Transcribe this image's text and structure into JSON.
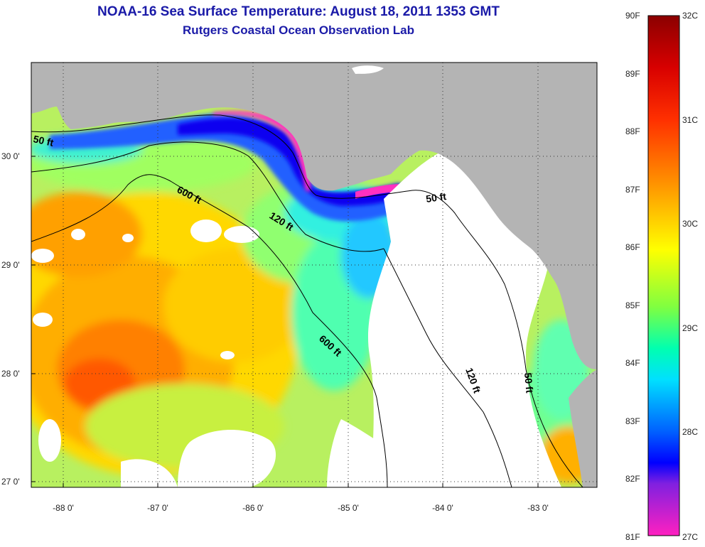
{
  "header": {
    "title": "NOAA-16 Sea Surface Temperature:  August 18, 2011 1353 GMT",
    "subtitle": "Rutgers Coastal Ocean Observation Lab"
  },
  "map": {
    "lon_ticks": [
      "-88 0'",
      "-87 0'",
      "-86 0'",
      "-85 0'",
      "-84 0'",
      "-83 0'"
    ],
    "lat_ticks": [
      "30 0'",
      "29 0'",
      "28 0'",
      "27 0'"
    ],
    "contours": [
      {
        "label": "50 ft"
      },
      {
        "label": "600 ft"
      },
      {
        "label": "120 ft"
      },
      {
        "label": "50 ft"
      },
      {
        "label": "600 ft"
      },
      {
        "label": "120 ft"
      },
      {
        "label": "50 ft"
      }
    ],
    "colors": {
      "land": "#b4b4b4",
      "cloud": "#ffffff",
      "contour": "#000000"
    }
  },
  "colorbar": {
    "f_labels": [
      "90F",
      "89F",
      "88F",
      "87F",
      "86F",
      "85F",
      "84F",
      "83F",
      "82F",
      "81F"
    ],
    "c_labels": [
      "32C",
      "31C",
      "30C",
      "29C",
      "28C",
      "27C"
    ]
  }
}
